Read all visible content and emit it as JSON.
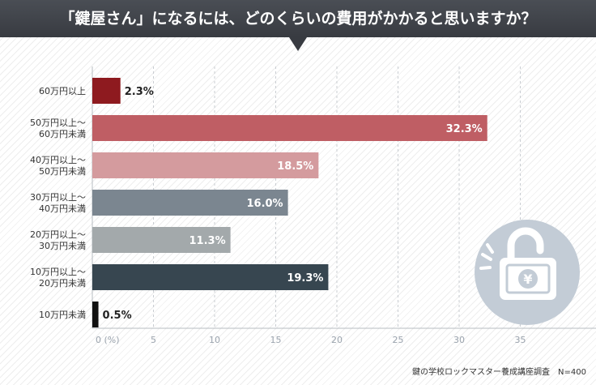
{
  "header": {
    "title": "「鍵屋さん」になるには、どのくらいの費用がかかると思いますか？"
  },
  "source": "鍵の学校ロックマスター養成講座調査　N=400",
  "colors": {
    "header_bg": "#3b3e44",
    "bar_60_plus": "#8e1a1f",
    "bar_50_60": "#bf5e64",
    "bar_40_50": "#d49b9e",
    "bar_30_40": "#7b8690",
    "bar_20_30": "#a3a9ab",
    "bar_10_20": "#374650",
    "bar_under_10": "#111111",
    "icon_circle": "#c3ccd6"
  },
  "icon": "padlock-yen-icon",
  "chart_data": {
    "type": "bar",
    "orientation": "horizontal",
    "title": "「鍵屋さん」になるには、どのくらいの費用がかかると思いますか？",
    "xlabel": "(%)",
    "ylabel": "",
    "xlim": [
      0,
      40
    ],
    "ticks": [
      0,
      5,
      10,
      15,
      20,
      25,
      30,
      35
    ],
    "tick_labels": [
      "0 (%)",
      "5",
      "10",
      "15",
      "20",
      "25",
      "30",
      "35"
    ],
    "grid": true,
    "categories": [
      [
        "60万円以上"
      ],
      [
        "50万円以上～",
        "60万円未満"
      ],
      [
        "40万円以上～",
        "50万円未満"
      ],
      [
        "30万円以上～",
        "40万円未満"
      ],
      [
        "20万円以上～",
        "30万円未満"
      ],
      [
        "10万円以上～",
        "20万円未満"
      ],
      [
        "10万円未満"
      ]
    ],
    "values": [
      2.3,
      32.3,
      18.5,
      16.0,
      11.3,
      19.3,
      0.5
    ],
    "value_labels": [
      "2.3%",
      "32.3%",
      "18.5%",
      "16.0%",
      "11.3%",
      "19.3%",
      "0.5%"
    ],
    "bar_colors": [
      "#8e1a1f",
      "#bf5e64",
      "#d49b9e",
      "#7b8690",
      "#a3a9ab",
      "#374650",
      "#111111"
    ],
    "label_inside": [
      false,
      true,
      true,
      true,
      true,
      true,
      false
    ]
  }
}
